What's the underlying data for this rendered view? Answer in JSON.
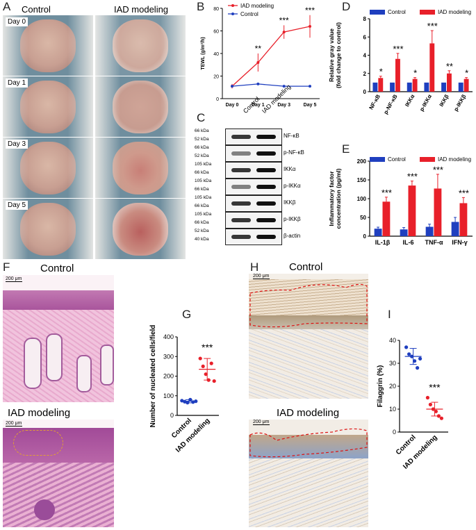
{
  "panels": {
    "A": "A",
    "B": "B",
    "C": "C",
    "D": "D",
    "E": "E",
    "F": "F",
    "G": "G",
    "H": "H",
    "I": "I"
  },
  "panelA": {
    "col_control": "Control",
    "col_iad": "IAD modeling",
    "days": [
      "Day 0",
      "Day 1",
      "Day 3",
      "Day 5"
    ]
  },
  "colors": {
    "control": "#1f3fbf",
    "iad": "#e8202a"
  },
  "legend": {
    "iad": "IAD modeling",
    "control": "Control"
  },
  "chart_data": [
    {
      "panel": "B",
      "type": "line",
      "x": [
        "Day 0",
        "Day 1",
        "Day 3",
        "Day 5"
      ],
      "ylabel": "TEWL (g/m²/h)",
      "ylim": [
        0,
        80
      ],
      "yticks": [
        0,
        20,
        40,
        60,
        80
      ],
      "series": [
        {
          "name": "IAD modeling",
          "values": [
            11,
            32,
            59,
            64
          ],
          "err": [
            2,
            8,
            6,
            10
          ]
        },
        {
          "name": "Control",
          "values": [
            11,
            13,
            11,
            11
          ],
          "err": [
            1,
            1,
            1,
            1
          ]
        }
      ],
      "annotations": [
        "",
        "**",
        "***",
        "***"
      ]
    },
    {
      "panel": "D",
      "type": "bar",
      "categories": [
        "NF-κB",
        "p-NF-κB",
        "IKKα",
        "p-IKKα",
        "IKKβ",
        "p-IKKβ"
      ],
      "ylabel": "Relative gray value (fold change to control)",
      "ylim": [
        0,
        8
      ],
      "yticks": [
        0,
        2,
        4,
        6,
        8
      ],
      "series": [
        {
          "name": "Control",
          "values": [
            1,
            1,
            1,
            1,
            1,
            1
          ],
          "err": [
            0,
            0,
            0,
            0,
            0,
            0
          ]
        },
        {
          "name": "IAD modeling",
          "values": [
            1.5,
            3.6,
            1.4,
            5.3,
            2.0,
            1.4
          ],
          "err": [
            0.2,
            0.6,
            0.15,
            1.4,
            0.3,
            0.15
          ]
        }
      ],
      "annotations": [
        "*",
        "***",
        "*",
        "***",
        "**",
        "*"
      ]
    },
    {
      "panel": "E",
      "type": "bar",
      "categories": [
        "IL-1β",
        "IL-6",
        "TNF-α",
        "IFN-γ"
      ],
      "ylabel": "Inflammatory factor concentration (pg/ml)",
      "ylim": [
        0,
        200
      ],
      "yticks": [
        0,
        50,
        100,
        150,
        200
      ],
      "series": [
        {
          "name": "Control",
          "values": [
            20,
            18,
            25,
            38
          ],
          "err": [
            4,
            5,
            7,
            12
          ]
        },
        {
          "name": "IAD modeling",
          "values": [
            92,
            135,
            127,
            88
          ],
          "err": [
            12,
            12,
            38,
            15
          ]
        }
      ],
      "annotations": [
        "***",
        "***",
        "***",
        "***"
      ]
    },
    {
      "panel": "G",
      "type": "scatter",
      "categories": [
        "Control",
        "IAD modeling"
      ],
      "ylabel": "Number of nucleated cells/field",
      "ylim": [
        0,
        400
      ],
      "yticks": [
        0,
        100,
        200,
        300,
        400
      ],
      "points": [
        [
          75,
          70,
          65,
          80,
          68,
          72
        ],
        [
          290,
          250,
          210,
          180,
          265,
          175
        ]
      ],
      "means": [
        72,
        235
      ],
      "sd": [
        8,
        55
      ],
      "annotation": "***"
    },
    {
      "panel": "I",
      "type": "scatter",
      "categories": [
        "Control",
        "IAD modeling"
      ],
      "ylabel": "Filaggrin (%)",
      "ylim": [
        0,
        40
      ],
      "yticks": [
        0,
        10,
        20,
        30,
        40
      ],
      "points": [
        [
          37,
          34,
          33,
          31,
          28,
          32
        ],
        [
          15,
          12,
          10,
          9,
          7,
          6
        ]
      ],
      "means": [
        33,
        10
      ],
      "sd": [
        3.5,
        3
      ],
      "annotation": "***"
    }
  ],
  "panelC": {
    "headers": [
      "Control",
      "IAD modeling"
    ],
    "rows": [
      {
        "kda": [
          "66 kDa",
          "52 kDa"
        ],
        "label": "NF-κB"
      },
      {
        "kda": [
          "66 kDa",
          "52 kDa"
        ],
        "label": "p-NF-κB"
      },
      {
        "kda": [
          "105 kDa",
          "66 kDa"
        ],
        "label": "IKKα"
      },
      {
        "kda": [
          "105 kDa",
          "66 kDa"
        ],
        "label": "p-IKKα"
      },
      {
        "kda": [
          "105 kDa",
          "66 kDa"
        ],
        "label": "IKKβ"
      },
      {
        "kda": [
          "105 kDa",
          "66 kDa"
        ],
        "label": "p-IKKβ"
      },
      {
        "kda": [
          "52 kDa",
          "40 kDa"
        ],
        "label": "β-actin"
      }
    ]
  },
  "panelF": {
    "top": "Control",
    "bottom": "IAD modeling",
    "scale": "200 μm"
  },
  "panelH": {
    "top": "Control",
    "bottom": "IAD modeling",
    "scale": "200 μm"
  }
}
